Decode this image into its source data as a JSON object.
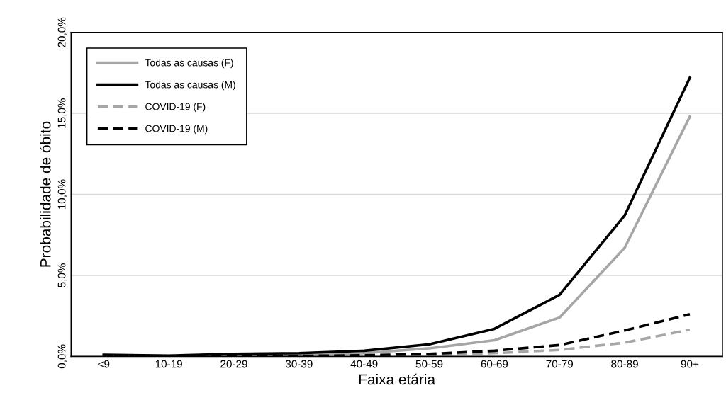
{
  "chart_data": {
    "type": "line",
    "xlabel": "Faixa etária",
    "ylabel": "Probabilidade de óbito",
    "categories": [
      "<9",
      "10-19",
      "20-29",
      "30-39",
      "40-49",
      "50-59",
      "60-69",
      "70-79",
      "80-89",
      "90+"
    ],
    "series": [
      {
        "name": "Todas as causas (F)",
        "color": "#a6a6a6",
        "line_style": "solid",
        "values": [
          0.05,
          0.03,
          0.07,
          0.1,
          0.2,
          0.5,
          1.0,
          2.4,
          6.7,
          14.8
        ]
      },
      {
        "name": "Todas as causas (M)",
        "color": "#000000",
        "line_style": "solid",
        "values": [
          0.1,
          0.05,
          0.15,
          0.2,
          0.35,
          0.75,
          1.7,
          3.8,
          8.7,
          17.2
        ]
      },
      {
        "name": "COVID-19 (F)",
        "color": "#a6a6a6",
        "line_style": "dashed",
        "values": [
          0.01,
          0.01,
          0.01,
          0.01,
          0.03,
          0.08,
          0.2,
          0.4,
          0.85,
          1.65
        ]
      },
      {
        "name": "COVID-19 (M)",
        "color": "#000000",
        "line_style": "dashed",
        "values": [
          0.01,
          0.01,
          0.02,
          0.03,
          0.07,
          0.15,
          0.35,
          0.7,
          1.6,
          2.6
        ]
      }
    ],
    "ylim": [
      0,
      20
    ],
    "yticks": [
      {
        "value": 0,
        "label": "0,0%"
      },
      {
        "value": 5,
        "label": "5,0%"
      },
      {
        "value": 10,
        "label": "10,0%"
      },
      {
        "value": 15,
        "label": "15,0%"
      },
      {
        "value": 20,
        "label": "20,0%"
      }
    ],
    "grid": "y",
    "legend": "top left",
    "marker": "none"
  }
}
